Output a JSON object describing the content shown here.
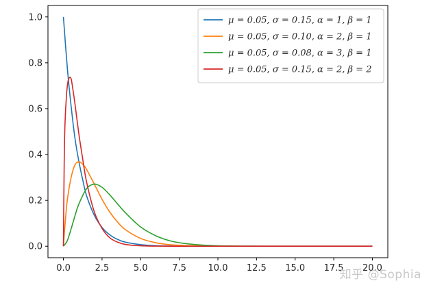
{
  "chart_data": {
    "type": "line",
    "title": "",
    "xlabel": "",
    "ylabel": "",
    "xlim": [
      -1.0,
      21.0
    ],
    "ylim": [
      -0.05,
      1.05
    ],
    "x_ticks": [
      0.0,
      2.5,
      5.0,
      7.5,
      10.0,
      12.5,
      15.0,
      17.5,
      20.0
    ],
    "x_tick_labels": [
      "0.0",
      "2.5",
      "5.0",
      "7.5",
      "10.0",
      "12.5",
      "15.0",
      "17.5",
      "20.0"
    ],
    "y_ticks": [
      0.0,
      0.2,
      0.4,
      0.6,
      0.8,
      1.0
    ],
    "y_tick_labels": [
      "0.0",
      "0.2",
      "0.4",
      "0.6",
      "0.8",
      "1.0"
    ],
    "grid": false,
    "legend_position": "top-right",
    "series": [
      {
        "name": "μ = 0.05,  σ = 0.15,  α = 1,  β = 1",
        "color": "#1f77b4",
        "x": [
          0,
          0.25,
          0.5,
          0.75,
          1,
          1.25,
          1.5,
          2,
          2.5,
          3,
          3.5,
          4,
          5,
          6,
          7,
          8,
          10,
          12,
          15,
          20
        ],
        "y": [
          1.0,
          0.78,
          0.61,
          0.47,
          0.37,
          0.29,
          0.22,
          0.135,
          0.082,
          0.05,
          0.03,
          0.018,
          0.007,
          0.0025,
          0.0009,
          0.0003,
          0.0,
          0.0,
          0.0,
          0.0
        ]
      },
      {
        "name": "μ = 0.05,  σ = 0.10,  α = 2,  β = 1",
        "color": "#ff7f0e",
        "x": [
          0,
          0.1,
          0.25,
          0.5,
          0.75,
          1,
          1.25,
          1.5,
          2,
          2.5,
          3,
          3.5,
          4,
          5,
          6,
          7,
          8,
          9,
          10,
          12,
          15,
          20
        ],
        "y": [
          0.0,
          0.09,
          0.2,
          0.3,
          0.355,
          0.368,
          0.358,
          0.335,
          0.271,
          0.205,
          0.149,
          0.106,
          0.073,
          0.034,
          0.015,
          0.006,
          0.003,
          0.001,
          0.0005,
          0.0,
          0.0,
          0.0
        ]
      },
      {
        "name": "μ = 0.05,  σ = 0.08,  α = 3,  β = 1",
        "color": "#2ca02c",
        "x": [
          0,
          0.25,
          0.5,
          0.75,
          1,
          1.5,
          2,
          2.5,
          3,
          3.5,
          4,
          5,
          6,
          7,
          8,
          9,
          10,
          11,
          12,
          13,
          15,
          20
        ],
        "y": [
          0.0,
          0.024,
          0.076,
          0.133,
          0.184,
          0.251,
          0.271,
          0.257,
          0.224,
          0.185,
          0.147,
          0.084,
          0.045,
          0.022,
          0.011,
          0.005,
          0.002,
          0.001,
          0.0005,
          0.0002,
          0.0,
          0.0
        ]
      },
      {
        "name": "μ = 0.05,  σ = 0.15,  α = 2,  β = 2",
        "color": "#d62728",
        "x": [
          0,
          0.05,
          0.1,
          0.2,
          0.3,
          0.4,
          0.5,
          0.6,
          0.75,
          1,
          1.25,
          1.5,
          2,
          2.5,
          3,
          3.5,
          4,
          5,
          6,
          8,
          10,
          20
        ],
        "y": [
          0.0,
          0.36,
          0.53,
          0.66,
          0.72,
          0.736,
          0.73,
          0.69,
          0.62,
          0.49,
          0.38,
          0.28,
          0.15,
          0.078,
          0.037,
          0.018,
          0.008,
          0.002,
          0.0005,
          0.0,
          0.0,
          0.0
        ]
      }
    ]
  },
  "watermark": "知乎 @Sophia"
}
